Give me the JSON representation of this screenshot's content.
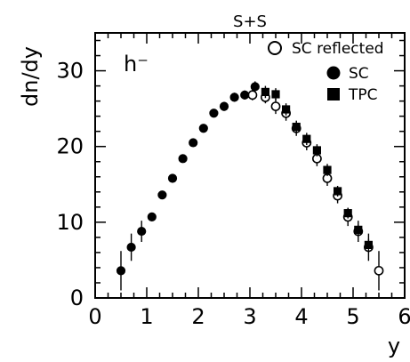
{
  "chart_data": {
    "type": "scatter",
    "title": "S+S",
    "xlabel": "y",
    "ylabel": "dn/dy",
    "annotation": "h⁻",
    "xlim": [
      0,
      6
    ],
    "ylim": [
      0,
      35
    ],
    "xticks": [
      "0",
      "1",
      "2",
      "3",
      "4",
      "5",
      "6"
    ],
    "yticks": [
      "0",
      "10",
      "20",
      "30"
    ],
    "legend_position": "top-right",
    "series": [
      {
        "name": "SC reflected",
        "marker": "open-circle",
        "color": "#000000",
        "points": [
          {
            "x": 3.05,
            "y": 26.8,
            "err": 0.7
          },
          {
            "x": 3.3,
            "y": 26.5,
            "err": 0.8
          },
          {
            "x": 3.5,
            "y": 25.3,
            "err": 1.0
          },
          {
            "x": 3.7,
            "y": 24.4,
            "err": 1.0
          },
          {
            "x": 3.9,
            "y": 22.4,
            "err": 1.0
          },
          {
            "x": 4.1,
            "y": 20.5,
            "err": 1.0
          },
          {
            "x": 4.3,
            "y": 18.4,
            "err": 1.0
          },
          {
            "x": 4.5,
            "y": 15.8,
            "err": 1.0
          },
          {
            "x": 4.7,
            "y": 13.5,
            "err": 1.0
          },
          {
            "x": 4.9,
            "y": 10.7,
            "err": 1.2
          },
          {
            "x": 5.1,
            "y": 8.8,
            "err": 1.4
          },
          {
            "x": 5.3,
            "y": 6.7,
            "err": 1.8
          },
          {
            "x": 5.5,
            "y": 3.6,
            "err": 2.6
          }
        ]
      },
      {
        "name": "SC",
        "marker": "filled-circle",
        "color": "#000000",
        "points": [
          {
            "x": 0.5,
            "y": 3.6,
            "err": 2.6
          },
          {
            "x": 0.7,
            "y": 6.7,
            "err": 1.8
          },
          {
            "x": 0.9,
            "y": 8.8,
            "err": 1.4
          },
          {
            "x": 1.1,
            "y": 10.7,
            "err": 0.4
          },
          {
            "x": 1.3,
            "y": 13.6,
            "err": 0.4
          },
          {
            "x": 1.5,
            "y": 15.8,
            "err": 0.4
          },
          {
            "x": 1.7,
            "y": 18.4,
            "err": 0.5
          },
          {
            "x": 1.9,
            "y": 20.5,
            "err": 0.5
          },
          {
            "x": 2.1,
            "y": 22.4,
            "err": 0.5
          },
          {
            "x": 2.3,
            "y": 24.4,
            "err": 0.5
          },
          {
            "x": 2.5,
            "y": 25.3,
            "err": 0.6
          },
          {
            "x": 2.7,
            "y": 26.5,
            "err": 0.6
          },
          {
            "x": 2.9,
            "y": 26.8,
            "err": 0.6
          },
          {
            "x": 3.1,
            "y": 27.9,
            "err": 0.7
          }
        ]
      },
      {
        "name": "TPC",
        "marker": "filled-square",
        "color": "#000000",
        "points": [
          {
            "x": 3.3,
            "y": 27.2,
            "err": 0.8
          },
          {
            "x": 3.5,
            "y": 26.9,
            "err": 0.8
          },
          {
            "x": 3.7,
            "y": 24.9,
            "err": 0.8
          },
          {
            "x": 3.9,
            "y": 22.6,
            "err": 0.8
          },
          {
            "x": 4.1,
            "y": 21.0,
            "err": 0.8
          },
          {
            "x": 4.3,
            "y": 19.5,
            "err": 0.8
          },
          {
            "x": 4.5,
            "y": 16.9,
            "err": 0.8
          },
          {
            "x": 4.7,
            "y": 14.1,
            "err": 0.7
          },
          {
            "x": 4.9,
            "y": 11.2,
            "err": 0.7
          },
          {
            "x": 5.1,
            "y": 9.0,
            "err": 0.7
          },
          {
            "x": 5.3,
            "y": 7.0,
            "err": 0.8
          }
        ]
      }
    ]
  }
}
